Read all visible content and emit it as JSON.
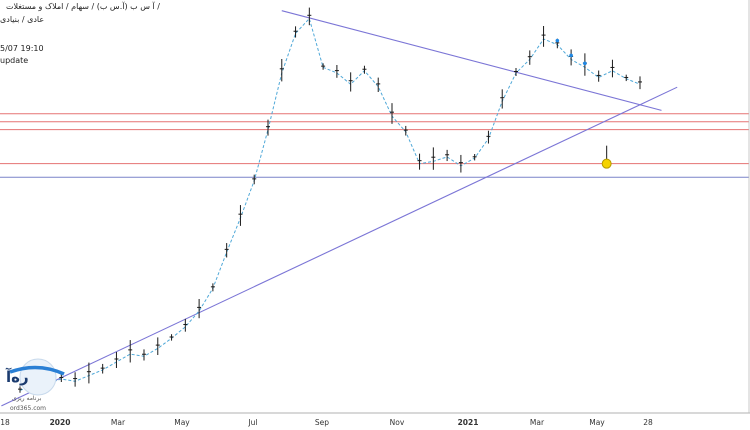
{
  "header": {
    "symbol_path": "آ س ب (آ.س ب) / سهام / املاک و مستغلات /",
    "sub_path": "عادی / بنیادی",
    "timestamp": "5/07 19:10",
    "status": "update"
  },
  "watermark": {
    "logo_text": "ره‌آ",
    "tagline": "برنامه ریزی",
    "site": "ord365.com"
  },
  "colors": {
    "background": "#ffffff",
    "trendline": "#7b75d6",
    "resistance": "#e57373",
    "support": "#7a84c9",
    "candle": "#1a1a1a",
    "price_line": "#4fa8d8",
    "marker_blue": "#1e88e5",
    "marker_red": "#e53935",
    "marker_yellow": "#f5d300"
  },
  "chart_data": {
    "type": "line",
    "title": "",
    "xlabel": "",
    "ylabel": "",
    "x_ticks": [
      "18",
      "2020",
      "Mar",
      "May",
      "Jul",
      "Sep",
      "Nov",
      "2021",
      "Mar",
      "May",
      "28"
    ],
    "x_ticks_bold": [
      "2020",
      "2021"
    ],
    "series": [
      {
        "values": [
          20,
          24,
          26,
          30,
          28,
          33,
          38,
          45,
          52,
          50,
          57,
          66,
          76,
          90,
          110,
          142,
          172,
          205,
          250,
          300,
          335,
          348,
          305,
          300,
          290,
          302,
          288,
          262,
          248,
          220,
          222,
          226,
          218,
          225,
          242,
          275,
          300,
          312,
          330,
          325,
          312,
          305,
          296,
          302,
          295,
          290
        ]
      }
    ],
    "horizontal_levels": [
      {
        "value": 264,
        "color": "resistance"
      },
      {
        "value": 257,
        "color": "resistance"
      },
      {
        "value": 250,
        "color": "resistance"
      },
      {
        "value": 220,
        "color": "resistance"
      },
      {
        "value": 208,
        "color": "support"
      }
    ],
    "trendlines": [
      {
        "name": "upper",
        "from_index": 19,
        "from_value": 355,
        "to_index": 45,
        "to_value": 272
      },
      {
        "name": "lower",
        "from_index": 0,
        "from_value": 14,
        "to_index": 45,
        "to_value": 272
      }
    ],
    "annotations": [
      {
        "type": "circle",
        "index": 42,
        "value": 220,
        "color": "marker_yellow"
      }
    ],
    "grid": false,
    "legend": "none"
  }
}
